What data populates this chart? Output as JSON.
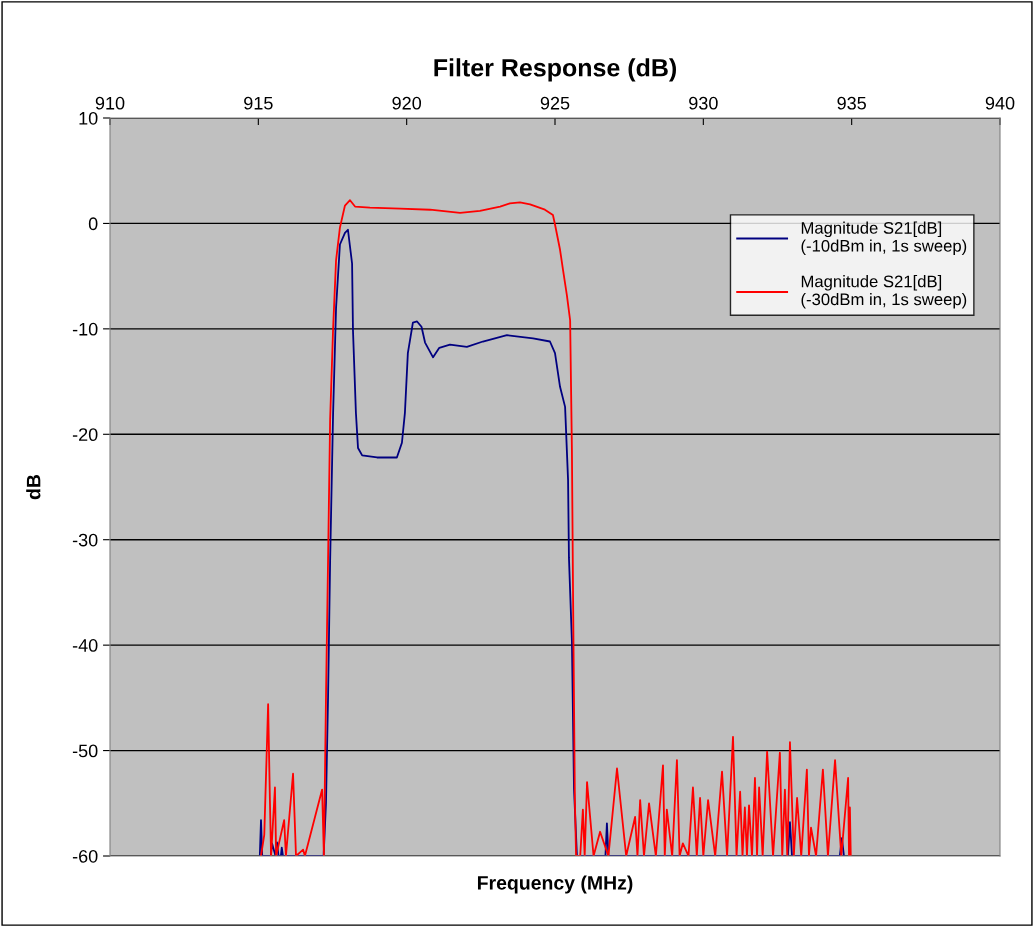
{
  "chart_data": {
    "type": "line",
    "title": "Filter Response (dB)",
    "xlabel": "Frequency (MHz)",
    "ylabel": "dB",
    "xlim": [
      910,
      940
    ],
    "xticks": [
      910,
      915,
      920,
      925,
      930,
      935,
      940
    ],
    "ylim": [
      -60,
      10
    ],
    "yticks": [
      10,
      0,
      -10,
      -20,
      -30,
      -40,
      -50,
      -60
    ],
    "grid": "y",
    "legend": "top right",
    "marker": "none",
    "line_style": "solid",
    "series": [
      {
        "name": "Magnitude S21[dB]\n(-10dBm in, 1s sweep)",
        "color": "#000080",
        "x": [
          915.05,
          915.09,
          915.13,
          915.42,
          915.46,
          915.58,
          915.63,
          915.68,
          915.76,
          915.79,
          915.83,
          917.2,
          917.28,
          917.35,
          917.42,
          917.52,
          917.62,
          917.75,
          917.92,
          918.02,
          918.16,
          918.19,
          918.29,
          918.36,
          918.5,
          919.0,
          919.67,
          919.84,
          919.94,
          920.04,
          920.21,
          920.35,
          920.5,
          920.62,
          920.89,
          921.1,
          921.46,
          922.03,
          922.57,
          923.38,
          924.26,
          924.83,
          925.0,
          925.17,
          925.34,
          925.44,
          925.47,
          925.57,
          925.64,
          925.74,
          926.7,
          926.75,
          926.8,
          932.85,
          932.92,
          932.99,
          934.6,
          934.67,
          934.74
        ],
        "values": [
          -60,
          -56.6,
          -60,
          -60,
          -58.8,
          -60,
          -58.7,
          -60,
          -60,
          -59.2,
          -60,
          -60,
          -55,
          -45,
          -32,
          -18,
          -8,
          -2,
          -0.9,
          -0.6,
          -3.8,
          -10.1,
          -18.0,
          -21.3,
          -22.0,
          -22.2,
          -22.2,
          -20.8,
          -18.0,
          -12.3,
          -9.4,
          -9.3,
          -9.8,
          -11.3,
          -12.7,
          -11.8,
          -11.5,
          -11.7,
          -11.2,
          -10.6,
          -10.9,
          -11.2,
          -12.3,
          -15.5,
          -17.4,
          -24.3,
          -31.7,
          -39.6,
          -53.6,
          -60,
          -60,
          -56.9,
          -60,
          -60,
          -56.8,
          -60,
          -60,
          -58.3,
          -60
        ]
      },
      {
        "name": "Magnitude S21[dB]\n(-30dBm in, 1s sweep)",
        "color": "#ff0000",
        "x": [
          915.09,
          915.2,
          915.33,
          915.39,
          915.43,
          915.56,
          915.6,
          915.87,
          915.93,
          916.17,
          916.27,
          916.51,
          916.57,
          917.15,
          917.21,
          917.28,
          917.35,
          917.42,
          917.52,
          917.62,
          917.75,
          917.92,
          918.09,
          918.26,
          918.76,
          919.78,
          920.79,
          921.8,
          922.47,
          923.15,
          923.48,
          923.82,
          924.16,
          924.66,
          924.93,
          925.0,
          925.17,
          925.27,
          925.4,
          925.51,
          925.57,
          925.61,
          925.64,
          925.67,
          925.71,
          925.85,
          925.94,
          926.0,
          926.08,
          926.3,
          926.52,
          926.8,
          927.09,
          927.4,
          927.7,
          927.78,
          927.87,
          928.0,
          928.17,
          928.4,
          928.64,
          928.7,
          928.77,
          928.95,
          929.11,
          929.2,
          929.31,
          929.5,
          929.65,
          929.78,
          929.89,
          930.0,
          930.16,
          930.4,
          930.63,
          930.8,
          931.0,
          931.12,
          931.24,
          931.32,
          931.4,
          931.47,
          931.54,
          931.64,
          931.74,
          931.81,
          931.88,
          932.0,
          932.15,
          932.35,
          932.58,
          932.66,
          932.75,
          932.83,
          932.92,
          933.05,
          933.16,
          933.3,
          933.49,
          933.56,
          933.63,
          933.8,
          934.03,
          934.2,
          934.44,
          934.65,
          934.88,
          934.91,
          934.94,
          934.97
        ],
        "values": [
          -60,
          -58,
          -45.6,
          -54.7,
          -60,
          -53.5,
          -60,
          -56.6,
          -60,
          -52.2,
          -60,
          -59.4,
          -60,
          -53.7,
          -60,
          -45,
          -32,
          -18.6,
          -10,
          -3.5,
          -0.4,
          1.7,
          2.2,
          1.6,
          1.5,
          1.4,
          1.3,
          1.0,
          1.2,
          1.6,
          1.9,
          2.0,
          1.8,
          1.3,
          0.8,
          -0.1,
          -2.5,
          -4.4,
          -6.8,
          -9.2,
          -21.5,
          -35.7,
          -45.2,
          -54.7,
          -60,
          -60,
          -55.6,
          -60,
          -53.0,
          -60,
          -57.7,
          -60,
          -51.7,
          -60,
          -56.3,
          -60,
          -54.7,
          -60,
          -55.0,
          -60,
          -51.4,
          -60,
          -55.6,
          -60,
          -50.9,
          -60,
          -58.8,
          -60,
          -53.5,
          -60,
          -54.5,
          -60,
          -54.7,
          -60,
          -52.0,
          -60,
          -48.7,
          -60,
          -53.9,
          -60,
          -55.4,
          -60,
          -55.2,
          -60,
          -52.6,
          -60,
          -53.5,
          -60,
          -50.1,
          -60,
          -50.2,
          -60,
          -53.7,
          -60,
          -49.2,
          -60,
          -54.5,
          -60,
          -51.8,
          -60,
          -57.3,
          -60,
          -51.8,
          -60,
          -50.9,
          -60,
          -52.6,
          -60,
          -55.4,
          -60
        ]
      }
    ]
  }
}
